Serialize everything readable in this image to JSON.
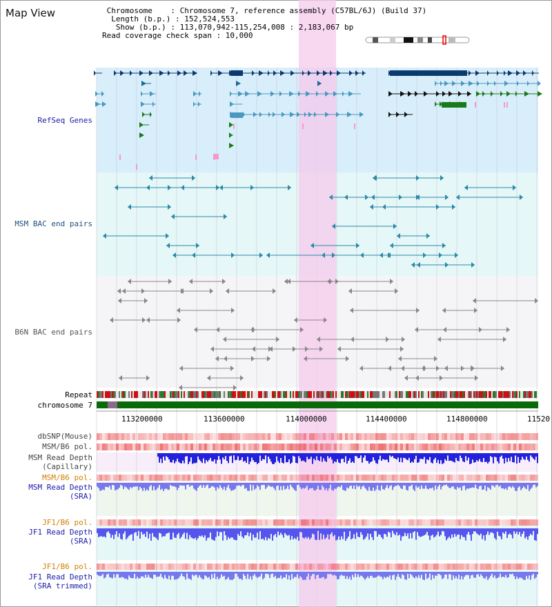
{
  "title": "Map View",
  "info": {
    "chromosome": "Chromosome    : Chromosome 7, reference assembly (C57BL/6J) (Build 37)",
    "length": "Length (b.p.) : 152,524,553",
    "show": "Show (b.p.) : 113,070,942-115,254,008 : 2,183,067 bp",
    "span": "Read coverage check span : 10,000"
  },
  "tracks": {
    "refseq": "RefSeq Genes",
    "msm_bac": "MSM BAC end pairs",
    "b6n_bac": "B6N BAC end pairs",
    "repeat": "Repeat",
    "chromosome": "chromosome 7"
  },
  "axis_ticks": [
    "113200000",
    "113600000",
    "114000000",
    "114400000",
    "114800000",
    "11520"
  ],
  "bottom_tracks": {
    "dbsnp": "dbSNP(Mouse)",
    "msm_b6_pol_1": "MSM/B6 pol.",
    "msm_read_depth_cap_1": "MSM Read Depth",
    "msm_read_depth_cap_2": "(Capillary)",
    "msm_b6_pol_2": "MSM/B6 pol.",
    "msm_read_depth_sra_1": "MSM Read Depth",
    "msm_read_depth_sra_2": "(SRA)",
    "jf1_b6_pol_1": "JF1/B6 pol.",
    "jf1_read_depth_sra_1": "JF1 Read Depth",
    "jf1_read_depth_sra_2": "(SRA)",
    "jf1_b6_pol_2": "JF1/B6 pol.",
    "jf1_read_depth_trim_1": "JF1 Read Depth",
    "jf1_read_depth_trim_2": "(SRA trimmed)"
  },
  "colors": {
    "refseq_bg": "#d8eefa",
    "msm_bac_bg": "#e6f7f7",
    "b6n_bac_bg": "#f6f6f8",
    "highlight": "#f6c9ec",
    "gene_dark": "#0b3a6e",
    "gene_mid": "#4a98bf",
    "gene_green": "#1a7a1a",
    "msm_line": "#2a8aa8",
    "b6n_line": "#888888",
    "label_blue": "#1a1aaa",
    "label_orange": "#d08000",
    "label_msm": "#205080"
  }
}
